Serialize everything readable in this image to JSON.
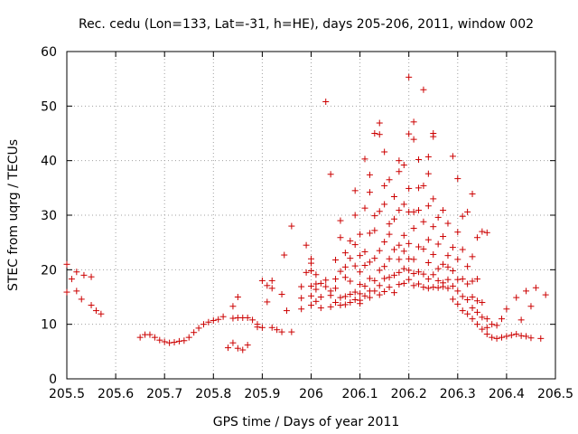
{
  "chart_data": {
    "type": "scatter",
    "title": "Rec. cedu (Lon=133, Lat=-31, h=HE), days 205-206, 2011, window 002",
    "xlabel": "GPS time / Days of year 2011",
    "ylabel": "STEC from uqrg / TECUs",
    "xlim": [
      205.5,
      206.5
    ],
    "ylim": [
      0,
      60
    ],
    "xticks": [
      205.5,
      205.6,
      205.7,
      205.8,
      205.9,
      206.0,
      206.1,
      206.2,
      206.3,
      206.4,
      206.5
    ],
    "xtick_labels": [
      "205.5",
      "205.6",
      "205.7",
      "205.8",
      "205.9",
      "206",
      "206.1",
      "206.2",
      "206.3",
      "206.4",
      "206.5"
    ],
    "yticks": [
      0,
      10,
      20,
      30,
      40,
      50,
      60
    ],
    "ytick_labels": [
      "0",
      "10",
      "20",
      "30",
      "40",
      "50",
      "60"
    ],
    "grid": true,
    "marker": "+",
    "color": "#cc0000",
    "series": [
      {
        "name": "STEC",
        "points": [
          [
            205.5,
            21.0
          ],
          [
            205.5,
            15.9
          ],
          [
            205.51,
            18.3
          ],
          [
            205.52,
            19.6
          ],
          [
            205.52,
            16.1
          ],
          [
            205.53,
            14.6
          ],
          [
            205.535,
            19.0
          ],
          [
            205.55,
            18.7
          ],
          [
            205.55,
            13.5
          ],
          [
            205.56,
            12.5
          ],
          [
            205.57,
            11.9
          ],
          [
            205.65,
            7.6
          ],
          [
            205.66,
            8.1
          ],
          [
            205.67,
            8.1
          ],
          [
            205.68,
            7.6
          ],
          [
            205.69,
            7.1
          ],
          [
            205.7,
            6.8
          ],
          [
            205.71,
            6.6
          ],
          [
            205.72,
            6.7
          ],
          [
            205.73,
            6.9
          ],
          [
            205.74,
            7.0
          ],
          [
            205.75,
            7.6
          ],
          [
            205.76,
            8.5
          ],
          [
            205.77,
            9.3
          ],
          [
            205.78,
            10.0
          ],
          [
            205.79,
            10.4
          ],
          [
            205.8,
            10.7
          ],
          [
            205.81,
            10.9
          ],
          [
            205.82,
            11.4
          ],
          [
            205.83,
            5.7
          ],
          [
            205.84,
            6.6
          ],
          [
            205.84,
            11.1
          ],
          [
            205.84,
            13.3
          ],
          [
            205.85,
            5.6
          ],
          [
            205.85,
            11.2
          ],
          [
            205.85,
            15.0
          ],
          [
            205.86,
            5.3
          ],
          [
            205.86,
            11.2
          ],
          [
            205.87,
            6.2
          ],
          [
            205.87,
            11.2
          ],
          [
            205.88,
            10.8
          ],
          [
            205.89,
            10.0
          ],
          [
            205.89,
            9.5
          ],
          [
            205.9,
            9.4
          ],
          [
            205.9,
            18.0
          ],
          [
            205.91,
            17.1
          ],
          [
            205.91,
            14.1
          ],
          [
            205.92,
            16.6
          ],
          [
            205.92,
            9.4
          ],
          [
            205.92,
            18.0
          ],
          [
            205.93,
            9.0
          ],
          [
            205.94,
            8.6
          ],
          [
            205.94,
            15.5
          ],
          [
            205.945,
            22.7
          ],
          [
            205.95,
            12.5
          ],
          [
            205.96,
            28.0
          ],
          [
            205.96,
            8.6
          ],
          [
            205.98,
            12.8
          ],
          [
            205.98,
            14.8
          ],
          [
            205.98,
            16.9
          ],
          [
            205.99,
            19.5
          ],
          [
            205.99,
            24.5
          ],
          [
            206.0,
            13.5
          ],
          [
            206.0,
            15.2
          ],
          [
            206.0,
            17.0
          ],
          [
            206.0,
            19.8
          ],
          [
            206.0,
            21.2
          ],
          [
            206.0,
            22.0
          ],
          [
            206.01,
            14.2
          ],
          [
            206.01,
            16.4
          ],
          [
            206.01,
            17.4
          ],
          [
            206.01,
            19.1
          ],
          [
            206.02,
            13.0
          ],
          [
            206.02,
            15.0
          ],
          [
            206.02,
            17.5
          ],
          [
            206.03,
            16.9
          ],
          [
            206.03,
            18.1
          ],
          [
            206.03,
            50.8
          ],
          [
            206.04,
            13.2
          ],
          [
            206.04,
            15.3
          ],
          [
            206.04,
            16.1
          ],
          [
            206.04,
            37.5
          ],
          [
            206.05,
            14.0
          ],
          [
            206.05,
            16.6
          ],
          [
            206.05,
            18.3
          ],
          [
            206.05,
            21.8
          ],
          [
            206.06,
            13.5
          ],
          [
            206.06,
            14.9
          ],
          [
            206.06,
            19.7
          ],
          [
            206.06,
            25.9
          ],
          [
            206.06,
            29.0
          ],
          [
            206.07,
            13.6
          ],
          [
            206.07,
            15.1
          ],
          [
            206.07,
            18.6
          ],
          [
            206.07,
            20.5
          ],
          [
            206.07,
            23.1
          ],
          [
            206.08,
            14.0
          ],
          [
            206.08,
            15.5
          ],
          [
            206.08,
            17.9
          ],
          [
            206.08,
            22.1
          ],
          [
            206.08,
            25.3
          ],
          [
            206.09,
            14.5
          ],
          [
            206.09,
            15.9
          ],
          [
            206.09,
            20.7
          ],
          [
            206.09,
            24.6
          ],
          [
            206.09,
            30.0
          ],
          [
            206.09,
            34.5
          ],
          [
            206.1,
            13.8
          ],
          [
            206.1,
            14.4
          ],
          [
            206.1,
            15.6
          ],
          [
            206.1,
            17.3
          ],
          [
            206.1,
            19.6
          ],
          [
            206.1,
            22.6
          ],
          [
            206.1,
            26.5
          ],
          [
            206.11,
            15.2
          ],
          [
            206.11,
            17.0
          ],
          [
            206.11,
            20.8
          ],
          [
            206.11,
            23.3
          ],
          [
            206.11,
            31.3
          ],
          [
            206.11,
            40.3
          ],
          [
            206.12,
            14.9
          ],
          [
            206.12,
            16.1
          ],
          [
            206.12,
            18.4
          ],
          [
            206.12,
            21.4
          ],
          [
            206.12,
            26.7
          ],
          [
            206.12,
            34.2
          ],
          [
            206.12,
            37.4
          ],
          [
            206.13,
            16.1
          ],
          [
            206.13,
            18.0
          ],
          [
            206.13,
            22.1
          ],
          [
            206.13,
            27.2
          ],
          [
            206.13,
            29.9
          ],
          [
            206.13,
            45.0
          ],
          [
            206.14,
            15.4
          ],
          [
            206.14,
            17.1
          ],
          [
            206.14,
            19.9
          ],
          [
            206.14,
            23.5
          ],
          [
            206.14,
            30.7
          ],
          [
            206.14,
            44.8
          ],
          [
            206.14,
            46.9
          ],
          [
            206.15,
            16.0
          ],
          [
            206.15,
            18.4
          ],
          [
            206.15,
            20.6
          ],
          [
            206.15,
            25.1
          ],
          [
            206.15,
            32.0
          ],
          [
            206.15,
            41.6
          ],
          [
            206.15,
            35.4
          ],
          [
            206.16,
            16.8
          ],
          [
            206.16,
            18.6
          ],
          [
            206.16,
            22.0
          ],
          [
            206.16,
            26.5
          ],
          [
            206.16,
            28.4
          ],
          [
            206.16,
            36.5
          ],
          [
            206.17,
            15.8
          ],
          [
            206.17,
            19.0
          ],
          [
            206.17,
            23.7
          ],
          [
            206.17,
            29.3
          ],
          [
            206.17,
            33.4
          ],
          [
            206.18,
            17.3
          ],
          [
            206.18,
            19.5
          ],
          [
            206.18,
            21.9
          ],
          [
            206.18,
            24.5
          ],
          [
            206.18,
            30.9
          ],
          [
            206.18,
            38.0
          ],
          [
            206.18,
            40.0
          ],
          [
            206.19,
            17.5
          ],
          [
            206.19,
            20.2
          ],
          [
            206.19,
            23.4
          ],
          [
            206.19,
            26.3
          ],
          [
            206.19,
            32.0
          ],
          [
            206.19,
            39.2
          ],
          [
            206.2,
            18.2
          ],
          [
            206.2,
            19.9
          ],
          [
            206.2,
            22.0
          ],
          [
            206.2,
            24.8
          ],
          [
            206.2,
            30.6
          ],
          [
            206.2,
            34.9
          ],
          [
            206.2,
            55.3
          ],
          [
            206.2,
            44.9
          ],
          [
            206.21,
            17.1
          ],
          [
            206.21,
            19.3
          ],
          [
            206.21,
            21.9
          ],
          [
            206.21,
            27.6
          ],
          [
            206.21,
            30.6
          ],
          [
            206.21,
            43.9
          ],
          [
            206.21,
            47.1
          ],
          [
            206.22,
            17.4
          ],
          [
            206.22,
            19.6
          ],
          [
            206.22,
            24.2
          ],
          [
            206.22,
            30.9
          ],
          [
            206.22,
            35.0
          ],
          [
            206.22,
            40.2
          ],
          [
            206.23,
            16.8
          ],
          [
            206.23,
            19.2
          ],
          [
            206.23,
            23.8
          ],
          [
            206.23,
            28.8
          ],
          [
            206.23,
            35.4
          ],
          [
            206.23,
            53.0
          ],
          [
            206.24,
            16.6
          ],
          [
            206.24,
            18.3
          ],
          [
            206.24,
            21.3
          ],
          [
            206.24,
            25.5
          ],
          [
            206.24,
            31.7
          ],
          [
            206.24,
            37.6
          ],
          [
            206.24,
            40.7
          ],
          [
            206.25,
            16.8
          ],
          [
            206.25,
            19.1
          ],
          [
            206.25,
            22.8
          ],
          [
            206.25,
            27.9
          ],
          [
            206.25,
            33.0
          ],
          [
            206.25,
            44.4
          ],
          [
            206.25,
            45.0
          ],
          [
            206.26,
            16.7
          ],
          [
            206.26,
            18.0
          ],
          [
            206.26,
            20.2
          ],
          [
            206.26,
            24.7
          ],
          [
            206.26,
            29.6
          ],
          [
            206.27,
            16.9
          ],
          [
            206.27,
            17.6
          ],
          [
            206.27,
            21.0
          ],
          [
            206.27,
            26.1
          ],
          [
            206.27,
            30.9
          ],
          [
            206.28,
            16.6
          ],
          [
            206.28,
            18.2
          ],
          [
            206.28,
            20.5
          ],
          [
            206.28,
            22.6
          ],
          [
            206.28,
            28.5
          ],
          [
            206.29,
            14.6
          ],
          [
            206.29,
            17.0
          ],
          [
            206.29,
            19.8
          ],
          [
            206.29,
            24.1
          ],
          [
            206.29,
            40.8
          ],
          [
            206.3,
            13.7
          ],
          [
            206.3,
            16.1
          ],
          [
            206.3,
            18.2
          ],
          [
            206.3,
            21.9
          ],
          [
            206.3,
            26.9
          ],
          [
            206.3,
            36.7
          ],
          [
            206.31,
            12.5
          ],
          [
            206.31,
            15.1
          ],
          [
            206.31,
            18.3
          ],
          [
            206.31,
            23.7
          ],
          [
            206.31,
            29.8
          ],
          [
            206.32,
            11.9
          ],
          [
            206.32,
            14.5
          ],
          [
            206.32,
            17.4
          ],
          [
            206.32,
            20.6
          ],
          [
            206.32,
            30.6
          ],
          [
            206.33,
            11.0
          ],
          [
            206.33,
            13.0
          ],
          [
            206.33,
            15.0
          ],
          [
            206.33,
            17.9
          ],
          [
            206.33,
            22.4
          ],
          [
            206.33,
            33.9
          ],
          [
            206.34,
            10.0
          ],
          [
            206.34,
            12.2
          ],
          [
            206.34,
            14.3
          ],
          [
            206.34,
            18.3
          ],
          [
            206.34,
            25.9
          ],
          [
            206.35,
            9.1
          ],
          [
            206.35,
            11.3
          ],
          [
            206.35,
            14.0
          ],
          [
            206.35,
            27.0
          ],
          [
            206.36,
            8.2
          ],
          [
            206.36,
            9.4
          ],
          [
            206.36,
            11.0
          ],
          [
            206.36,
            26.8
          ],
          [
            206.37,
            7.6
          ],
          [
            206.37,
            10.0
          ],
          [
            206.38,
            7.4
          ],
          [
            206.38,
            9.8
          ],
          [
            206.39,
            7.6
          ],
          [
            206.39,
            11.0
          ],
          [
            206.4,
            7.8
          ],
          [
            206.4,
            12.8
          ],
          [
            206.41,
            8.0
          ],
          [
            206.42,
            8.2
          ],
          [
            206.42,
            14.9
          ],
          [
            206.43,
            7.9
          ],
          [
            206.43,
            10.8
          ],
          [
            206.44,
            7.8
          ],
          [
            206.44,
            16.1
          ],
          [
            206.45,
            7.5
          ],
          [
            206.45,
            13.3
          ],
          [
            206.46,
            16.7
          ],
          [
            206.47,
            7.4
          ],
          [
            206.48,
            15.4
          ]
        ]
      }
    ]
  }
}
